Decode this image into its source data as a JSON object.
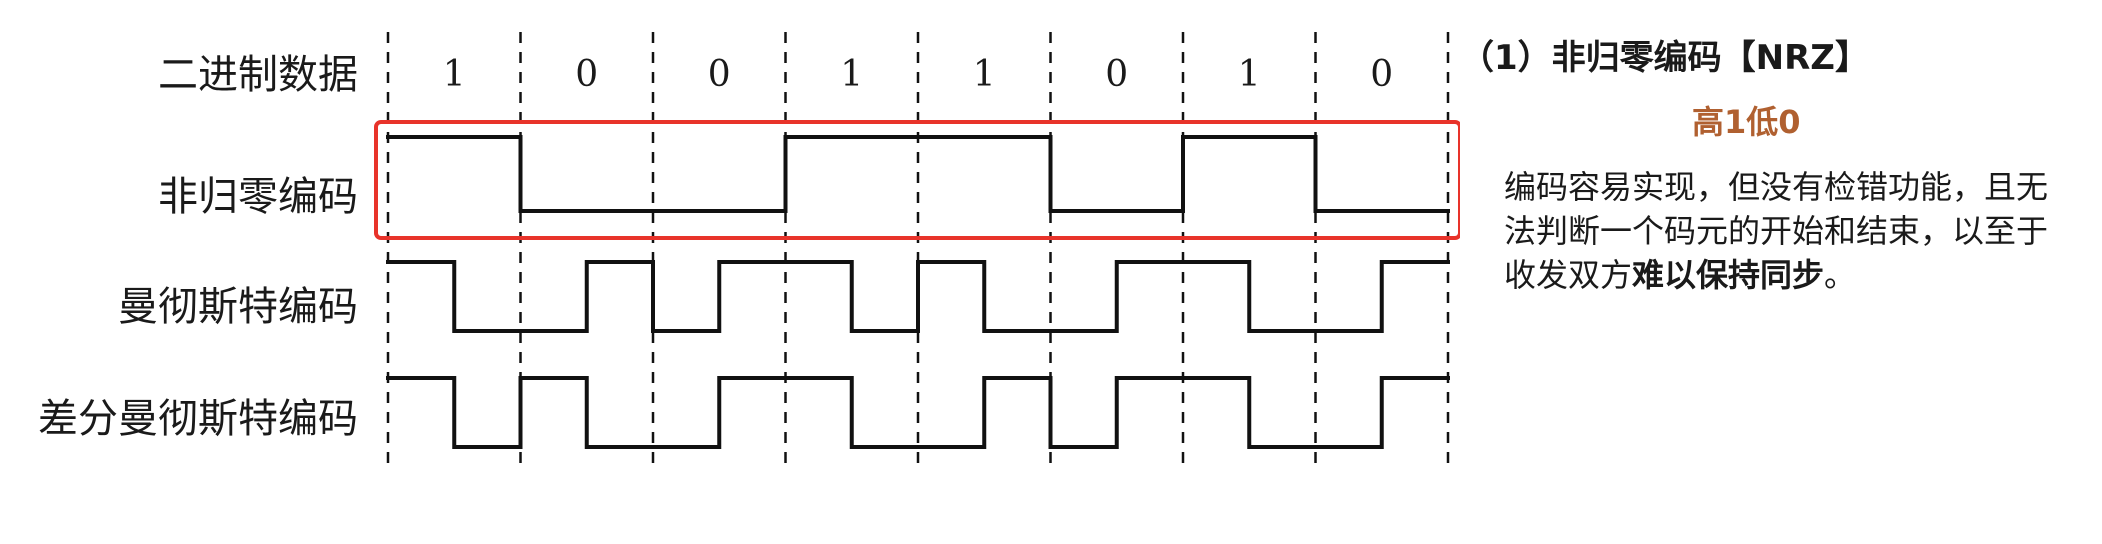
{
  "diagram": {
    "bits": [
      "1",
      "0",
      "0",
      "1",
      "1",
      "0",
      "1",
      "0"
    ],
    "rows": [
      {
        "key": "binary",
        "label": "二进制数据"
      },
      {
        "key": "nrz",
        "label": "非归零编码"
      },
      {
        "key": "manchester",
        "label": "曼彻斯特编码"
      },
      {
        "key": "diff_manchester",
        "label": "差分曼彻斯特编码"
      }
    ],
    "highlight_row": "nrz",
    "highlight_color": "#e8332a",
    "encodings": {
      "nrz": {
        "first_half": [
          1,
          0,
          0,
          1,
          1,
          0,
          1,
          0
        ],
        "second_half": [
          1,
          0,
          0,
          1,
          1,
          0,
          1,
          0
        ]
      },
      "manchester": {
        "first_half": [
          1,
          0,
          0,
          1,
          1,
          0,
          1,
          0
        ],
        "second_half": [
          0,
          1,
          1,
          0,
          0,
          1,
          0,
          1
        ]
      },
      "diff_manchester": {
        "first_half": [
          1,
          1,
          0,
          1,
          0,
          0,
          1,
          0
        ],
        "second_half": [
          0,
          0,
          1,
          0,
          1,
          1,
          0,
          1
        ]
      }
    }
  },
  "side": {
    "title": "（1）非归零编码【NRZ】",
    "subtitle": "高1低0",
    "subtitle_color": "#b06030",
    "desc_normal": "编码容易实现，但没有检错功能，且无法判断一个码元的开始和结束，以至于收发双方",
    "desc_bold": "难以保持同步",
    "desc_end": "。"
  }
}
